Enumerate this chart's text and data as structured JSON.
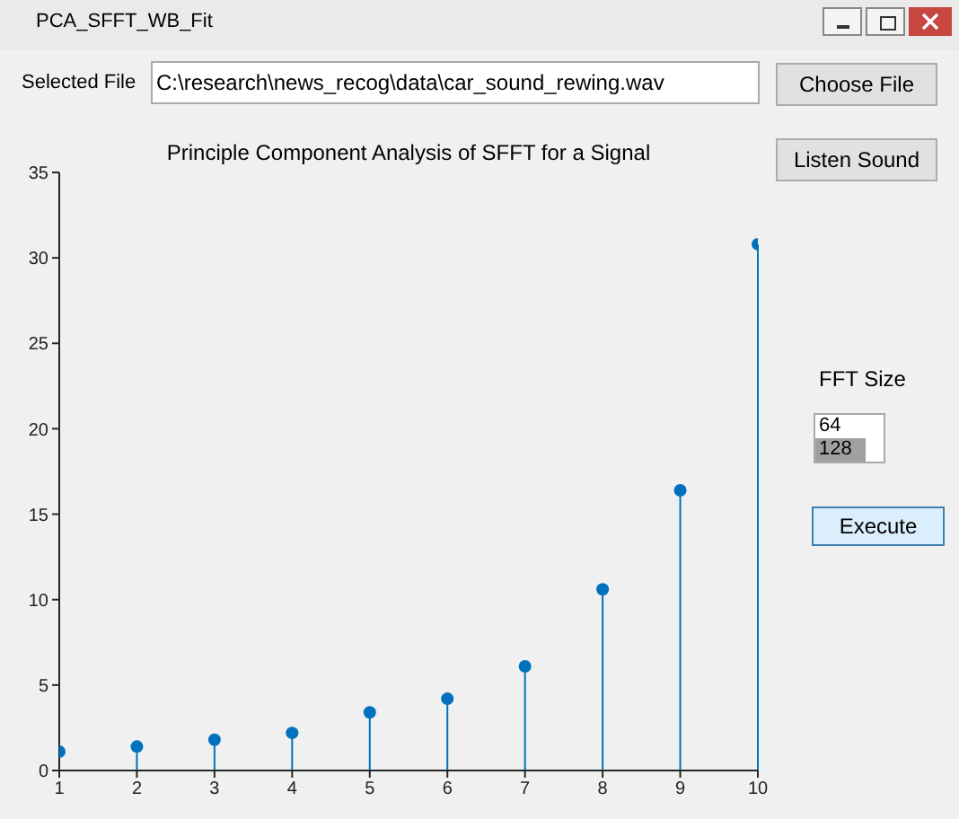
{
  "chart_data": {
    "type": "lollipop",
    "title": "Principle Component Analysis of SFFT for a Signal",
    "x": [
      1,
      2,
      3,
      4,
      5,
      6,
      7,
      8,
      9,
      10
    ],
    "values": [
      1.1,
      1.4,
      1.8,
      2.2,
      3.4,
      4.2,
      6.1,
      10.6,
      16.4,
      30.8
    ],
    "color": "#0072bd",
    "marker": "circle",
    "grid": false,
    "xlim": [
      1,
      10
    ],
    "xticks": [
      1,
      2,
      3,
      4,
      5,
      6,
      7,
      8,
      9,
      10
    ],
    "ylim": [
      0,
      35
    ],
    "yticks": [
      0,
      5,
      10,
      15,
      20,
      25,
      30,
      35
    ],
    "annotations": [
      "PCA_SFFT_WB_Fit",
      "Selected  File",
      "C:\\research\\news_recog\\data\\car_sound_rewing.wav",
      "Choose  File",
      "Listen Sound",
      "FFT Size",
      "64",
      "128",
      "Execute"
    ]
  }
}
